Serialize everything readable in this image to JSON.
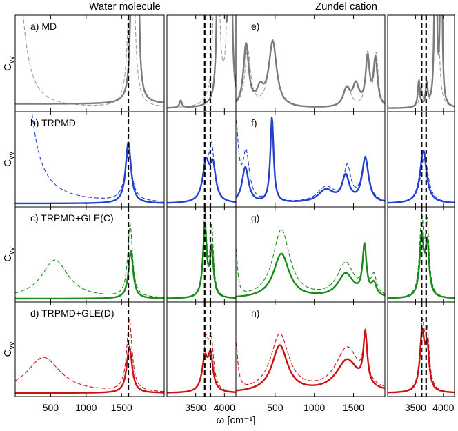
{
  "chart_data": {
    "type": "line",
    "column_titles": [
      "Water molecule",
      "Zundel cation"
    ],
    "xlabel": "ω [cm⁻¹]",
    "ylabel": "C_vv",
    "ylabel_main": "C",
    "ylabel_sub": "vv",
    "grid": false,
    "rows": [
      {
        "name": "MD",
        "color": "#7a7a7a",
        "labels": [
          "a) MD",
          "e)"
        ]
      },
      {
        "name": "TRPMD",
        "color": "#2440d0",
        "labels": [
          "b) TRPMD",
          "f)"
        ]
      },
      {
        "name": "TRPMD+GLE(C)",
        "color": "#1a8a1a",
        "labels": [
          "c) TRPMD+GLE(C)",
          "g)"
        ]
      },
      {
        "name": "TRPMD+GLE(D)",
        "color": "#cc1111",
        "labels": [
          "d) TRPMD+GLE(D)",
          "h)"
        ]
      }
    ],
    "xranges": {
      "water_low": [
        0,
        2100
      ],
      "water_high": [
        3000,
        4200
      ],
      "zundel_low": [
        0,
        1900
      ],
      "zundel_high": [
        3000,
        4200
      ]
    },
    "xticks": {
      "water_low": [
        500,
        1000,
        1500
      ],
      "water_high": [
        3500,
        4000
      ],
      "zundel_low": [
        500,
        1000,
        1500
      ],
      "zundel_high": [
        3500,
        4000
      ]
    },
    "reference_lines": {
      "water_low": [
        1595
      ],
      "water_high": [
        3657,
        3756
      ],
      "zundel_high": [
        3610,
        3690
      ]
    },
    "series": {
      "water_low": [
        {
          "peaks_solid": [
            [
              1660,
              5.0,
              18
            ],
            [
              1720,
              5.0,
              14
            ]
          ],
          "peaks_dashed": [
            [
              0,
              2.0,
              120
            ],
            [
              1640,
              4.0,
              30
            ]
          ],
          "baseline_solid": 0.05
        },
        {
          "peaks_solid": [
            [
              1595,
              0.72,
              45
            ]
          ],
          "peaks_dashed": [
            [
              0,
              6.0,
              110
            ],
            [
              1595,
              0.55,
              60
            ]
          ],
          "baseline_solid": 0.0
        },
        {
          "peaks_solid": [
            [
              1630,
              0.55,
              40
            ]
          ],
          "peaks_dashed": [
            [
              560,
              0.45,
              230
            ],
            [
              1620,
              0.85,
              40
            ]
          ],
          "baseline_solid": 0.0
        },
        {
          "peaks_solid": [
            [
              1610,
              0.55,
              45
            ]
          ],
          "peaks_dashed": [
            [
              400,
              0.42,
              290
            ],
            [
              1610,
              0.85,
              45
            ]
          ],
          "baseline_solid": 0.0
        }
      ],
      "water_high": [
        {
          "peaks_solid": [
            [
              3240,
              0.08,
              25
            ],
            [
              3900,
              5.0,
              18
            ],
            [
              3980,
              5.0,
              18
            ],
            [
              4100,
              5.0,
              20
            ]
          ],
          "peaks_dashed": [
            [
              3860,
              5.0,
              30
            ],
            [
              4090,
              5.0,
              25
            ]
          ]
        },
        {
          "peaks_solid": [
            [
              3680,
              0.45,
              70
            ],
            [
              3800,
              0.4,
              60
            ]
          ],
          "peaks_dashed": [
            [
              3680,
              0.4,
              70
            ],
            [
              3780,
              0.58,
              55
            ]
          ]
        },
        {
          "peaks_solid": [
            [
              3660,
              0.82,
              40
            ],
            [
              3780,
              0.55,
              35
            ]
          ],
          "peaks_dashed": [
            [
              3660,
              0.95,
              40
            ],
            [
              3780,
              0.78,
              35
            ]
          ]
        },
        {
          "peaks_solid": [
            [
              3660,
              0.38,
              60
            ],
            [
              3760,
              0.4,
              50
            ]
          ],
          "peaks_dashed": [
            [
              3680,
              0.55,
              55
            ],
            [
              3770,
              0.55,
              50
            ]
          ]
        }
      ],
      "zundel_low": [
        {
          "peaks_solid": [
            [
              130,
              0.72,
              40
            ],
            [
              310,
              0.18,
              50
            ],
            [
              470,
              0.75,
              60
            ],
            [
              1410,
              0.2,
              50
            ],
            [
              1530,
              0.25,
              50
            ],
            [
              1680,
              0.55,
              30
            ],
            [
              1780,
              0.55,
              30
            ]
          ],
          "peaks_dashed": [
            [
              150,
              0.65,
              45
            ],
            [
              470,
              0.78,
              60
            ],
            [
              1420,
              0.26,
              55
            ],
            [
              1680,
              0.62,
              30
            ],
            [
              1790,
              0.6,
              30
            ]
          ]
        },
        {
          "peaks_solid": [
            [
              120,
              0.42,
              50
            ],
            [
              460,
              1.0,
              25
            ],
            [
              1150,
              0.15,
              120
            ],
            [
              1400,
              0.3,
              55
            ],
            [
              1650,
              0.52,
              50
            ]
          ],
          "peaks_dashed": [
            [
              0,
              0.9,
              40
            ],
            [
              130,
              0.55,
              50
            ],
            [
              460,
              0.95,
              25
            ],
            [
              1150,
              0.18,
              130
            ],
            [
              1420,
              0.4,
              55
            ],
            [
              1650,
              0.52,
              55
            ]
          ]
        },
        {
          "peaks_solid": [
            [
              580,
              0.52,
              120
            ],
            [
              1400,
              0.28,
              120
            ],
            [
              1640,
              0.58,
              30
            ],
            [
              1760,
              0.14,
              40
            ]
          ],
          "peaks_dashed": [
            [
              0,
              0.55,
              25
            ],
            [
              580,
              0.8,
              130
            ],
            [
              1400,
              0.4,
              130
            ],
            [
              1640,
              0.5,
              30
            ],
            [
              1760,
              0.22,
              40
            ]
          ]
        },
        {
          "peaks_solid": [
            [
              560,
              0.55,
              120
            ],
            [
              1420,
              0.38,
              170
            ],
            [
              1650,
              0.6,
              30
            ]
          ],
          "peaks_dashed": [
            [
              0,
              0.55,
              30
            ],
            [
              560,
              0.68,
              140
            ],
            [
              1420,
              0.52,
              180
            ],
            [
              1650,
              0.55,
              30
            ]
          ]
        }
      ],
      "zundel_high": [
        {
          "peaks_solid": [
            [
              3560,
              0.3,
              22
            ],
            [
              3700,
              0.26,
              22
            ],
            [
              3860,
              5.0,
              14
            ],
            [
              3960,
              5.0,
              12
            ]
          ],
          "peaks_dashed": [
            [
              3600,
              0.22,
              30
            ],
            [
              3880,
              5.0,
              20
            ]
          ]
        },
        {
          "peaks_solid": [
            [
              3640,
              0.62,
              70
            ]
          ],
          "peaks_dashed": [
            [
              3660,
              0.56,
              80
            ]
          ]
        },
        {
          "peaks_solid": [
            [
              3610,
              0.68,
              45
            ],
            [
              3710,
              0.6,
              40
            ]
          ],
          "peaks_dashed": [
            [
              3610,
              0.88,
              45
            ],
            [
              3710,
              0.8,
              40
            ]
          ]
        },
        {
          "peaks_solid": [
            [
              3620,
              0.68,
              50
            ],
            [
              3710,
              0.48,
              40
            ]
          ],
          "peaks_dashed": [
            [
              3620,
              0.75,
              50
            ],
            [
              3710,
              0.62,
              45
            ]
          ]
        }
      ]
    }
  }
}
